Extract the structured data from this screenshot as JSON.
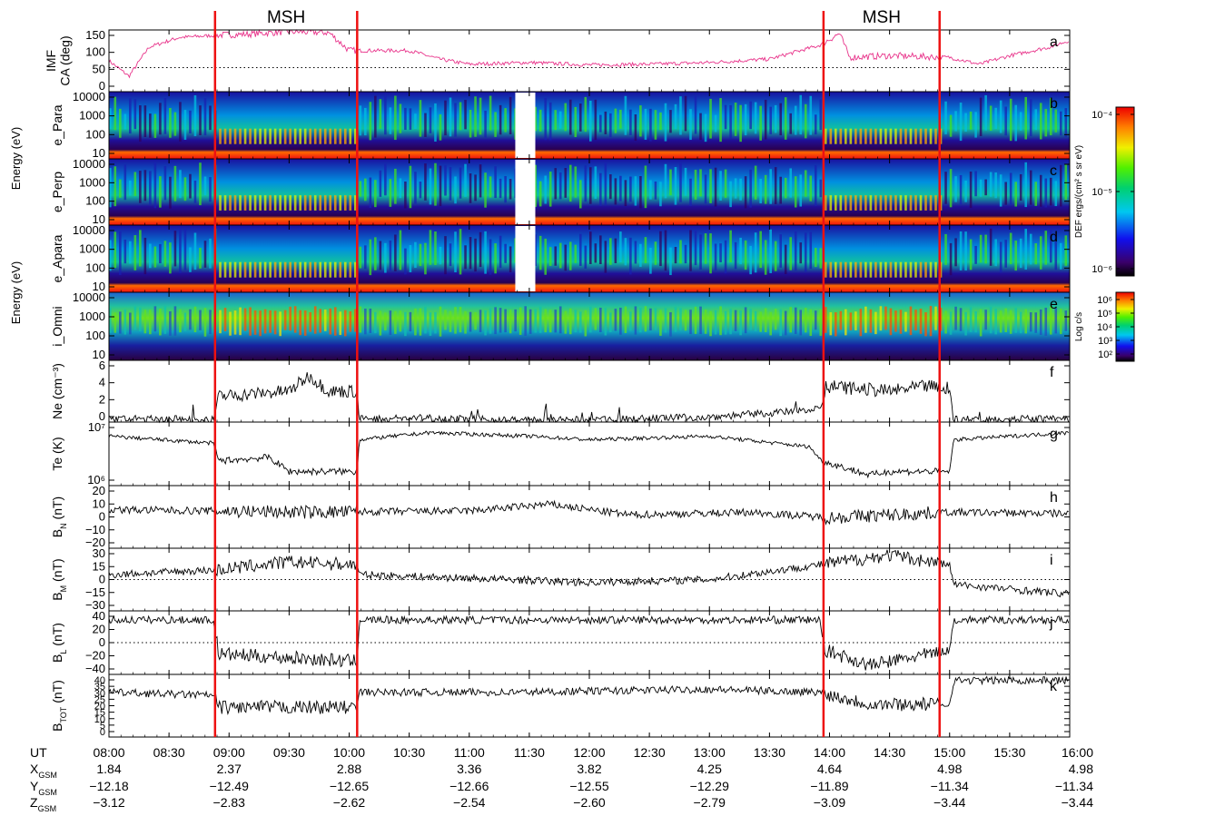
{
  "chart_data": {
    "type": "line",
    "time_range": [
      "08:00",
      "16:00"
    ],
    "ticks": {
      "labels": [
        "08:00",
        "08:30",
        "09:00",
        "09:30",
        "10:00",
        "10:30",
        "11:00",
        "11:30",
        "12:00",
        "12:30",
        "13:00",
        "13:30",
        "14:00",
        "14:30",
        "15:00",
        "15:30",
        "16:00"
      ],
      "minutes_from_start": [
        0,
        30,
        60,
        90,
        120,
        150,
        180,
        210,
        240,
        270,
        300,
        330,
        360,
        390,
        420,
        450,
        480
      ]
    },
    "msh_label": "MSH",
    "msh_color": "#ee1111",
    "msh_boundaries": [
      "08:53",
      "10:04",
      "13:57",
      "14:55"
    ],
    "msh_intervals": [
      {
        "label": "MSH",
        "start": "08:53",
        "end": "10:04"
      },
      {
        "label": "MSH",
        "start": "13:57",
        "end": "14:55"
      }
    ],
    "panels": [
      {
        "id": "a",
        "letter": "a",
        "kind": "line",
        "ylabel": [
          "IMF",
          "CA (deg)"
        ],
        "yticks": [
          "150",
          "100",
          "50",
          "0"
        ],
        "ylim": [
          0,
          180
        ],
        "ref": 70,
        "color": "#e8338a",
        "trend": [
          [
            0,
            90
          ],
          [
            10,
            45
          ],
          [
            20,
            130
          ],
          [
            35,
            158
          ],
          [
            55,
            165
          ],
          [
            70,
            168
          ],
          [
            90,
            175
          ],
          [
            110,
            172
          ],
          [
            120,
            120
          ],
          [
            150,
            120
          ],
          [
            165,
            95
          ],
          [
            180,
            80
          ],
          [
            210,
            85
          ],
          [
            240,
            78
          ],
          [
            270,
            80
          ],
          [
            300,
            85
          ],
          [
            330,
            95
          ],
          [
            355,
            135
          ],
          [
            365,
            170
          ],
          [
            370,
            100
          ],
          [
            390,
            105
          ],
          [
            420,
            100
          ],
          [
            435,
            80
          ],
          [
            450,
            105
          ],
          [
            470,
            130
          ],
          [
            480,
            150
          ]
        ]
      },
      {
        "id": "b",
        "letter": "b",
        "kind": "spectrogram",
        "ylabel": [
          "e_Para"
        ],
        "yticks": [
          "10000",
          "1000",
          "100",
          "10"
        ]
      },
      {
        "id": "c",
        "letter": "c",
        "kind": "spectrogram",
        "ylabel": [
          "e_Perp"
        ],
        "yticks": [
          "10000",
          "1000",
          "100",
          "10"
        ]
      },
      {
        "id": "d",
        "letter": "d",
        "kind": "spectrogram",
        "ylabel": [
          "e_Apara"
        ],
        "yticks": [
          "10000",
          "1000",
          "100",
          "10"
        ]
      },
      {
        "id": "e",
        "letter": "e",
        "kind": "spectrogram",
        "ylabel": [
          "i_Omni"
        ],
        "yticks": [
          "10000",
          "1000",
          "100",
          "10"
        ]
      },
      {
        "id": "f",
        "letter": "f",
        "kind": "line",
        "ylabel": [
          "Ne (cm⁻³)"
        ],
        "yticks": [
          "6",
          "4",
          "2",
          "0"
        ],
        "ylim": [
          0,
          6
        ],
        "trend": [
          [
            0,
            0.3
          ],
          [
            52,
            0.3
          ],
          [
            55,
            2.5
          ],
          [
            90,
            3.0
          ],
          [
            100,
            4.5
          ],
          [
            110,
            3.0
          ],
          [
            124,
            3.0
          ],
          [
            125,
            0.3
          ],
          [
            160,
            0.4
          ],
          [
            175,
            0.3
          ],
          [
            200,
            0.2
          ],
          [
            240,
            0.2
          ],
          [
            300,
            0.5
          ],
          [
            340,
            1.0
          ],
          [
            356,
            1.5
          ],
          [
            358,
            3.5
          ],
          [
            390,
            3.0
          ],
          [
            410,
            3.5
          ],
          [
            420,
            3.0
          ],
          [
            422,
            0.3
          ],
          [
            480,
            0.3
          ]
        ]
      },
      {
        "id": "g",
        "letter": "g",
        "kind": "line",
        "ylabel": [
          "Te (K)"
        ],
        "yticks": [
          "10⁷",
          "10⁶"
        ],
        "log": true,
        "ylim": [
          5.4,
          7.2
        ],
        "trend": [
          [
            0,
            6.8
          ],
          [
            52,
            6.6
          ],
          [
            55,
            6.1
          ],
          [
            80,
            6.2
          ],
          [
            90,
            5.8
          ],
          [
            124,
            5.8
          ],
          [
            125,
            6.7
          ],
          [
            160,
            6.9
          ],
          [
            210,
            6.8
          ],
          [
            240,
            6.7
          ],
          [
            300,
            6.8
          ],
          [
            350,
            6.5
          ],
          [
            356,
            6.1
          ],
          [
            380,
            5.7
          ],
          [
            390,
            5.8
          ],
          [
            420,
            5.8
          ],
          [
            422,
            6.7
          ],
          [
            480,
            6.9
          ]
        ]
      },
      {
        "id": "h",
        "letter": "h",
        "kind": "line",
        "ylabel": [
          "B",
          "N",
          " (nT)"
        ],
        "yticks": [
          "20",
          "10",
          "0",
          "−10",
          "−20"
        ],
        "ylim": [
          -25,
          22
        ],
        "trend": [
          [
            0,
            4
          ],
          [
            100,
            2
          ],
          [
            180,
            3
          ],
          [
            220,
            8
          ],
          [
            260,
            0
          ],
          [
            320,
            2
          ],
          [
            360,
            -2
          ],
          [
            420,
            2
          ],
          [
            480,
            1
          ]
        ]
      },
      {
        "id": "i",
        "letter": "i",
        "kind": "line",
        "ylabel": [
          "B",
          "M",
          " (nT)"
        ],
        "yticks": [
          "30",
          "15",
          "0",
          "−15",
          "−30"
        ],
        "ylim": [
          -32,
          32
        ],
        "ref": 0,
        "trend": [
          [
            0,
            5
          ],
          [
            55,
            10
          ],
          [
            90,
            18
          ],
          [
            124,
            15
          ],
          [
            125,
            5
          ],
          [
            200,
            0
          ],
          [
            240,
            -3
          ],
          [
            300,
            0
          ],
          [
            355,
            15
          ],
          [
            390,
            25
          ],
          [
            420,
            15
          ],
          [
            422,
            -5
          ],
          [
            480,
            -15
          ]
        ]
      },
      {
        "id": "j",
        "letter": "j",
        "kind": "line",
        "ylabel": [
          "B",
          "L",
          " (nT)"
        ],
        "yticks": [
          "40",
          "20",
          "0",
          "−20",
          "−40"
        ],
        "ylim": [
          -42,
          42
        ],
        "ref": 0,
        "trend": [
          [
            0,
            30
          ],
          [
            52,
            30
          ],
          [
            55,
            -15
          ],
          [
            90,
            -20
          ],
          [
            124,
            -25
          ],
          [
            125,
            30
          ],
          [
            200,
            30
          ],
          [
            300,
            30
          ],
          [
            355,
            30
          ],
          [
            358,
            -10
          ],
          [
            380,
            -30
          ],
          [
            420,
            -10
          ],
          [
            422,
            30
          ],
          [
            480,
            30
          ]
        ]
      },
      {
        "id": "k",
        "letter": "k",
        "kind": "line",
        "ylabel": [
          "B",
          "TOT",
          " (nT)"
        ],
        "yticks": [
          "40",
          "35",
          "30",
          "25",
          "20",
          "15",
          "10",
          "5",
          "0"
        ],
        "ylim": [
          0,
          42
        ],
        "trend": [
          [
            0,
            30
          ],
          [
            52,
            28
          ],
          [
            55,
            20
          ],
          [
            90,
            20
          ],
          [
            124,
            20
          ],
          [
            125,
            30
          ],
          [
            200,
            30
          ],
          [
            300,
            32
          ],
          [
            355,
            30
          ],
          [
            380,
            22
          ],
          [
            420,
            22
          ],
          [
            422,
            38
          ],
          [
            480,
            38
          ]
        ]
      }
    ],
    "energy_label": "Energy (eV)",
    "colorbars": [
      {
        "label": "DEF ergs/(cm² s sr eV)",
        "ticks": [
          "10⁻⁴",
          "10⁻⁵",
          "10⁻⁶"
        ]
      },
      {
        "label": "Log c/s",
        "ticks": [
          "10⁶",
          "10⁵",
          "10⁴",
          "10³",
          "10²"
        ]
      }
    ],
    "ephemeris": {
      "rows": [
        {
          "name": "UT",
          "label": "UT",
          "values": [
            "08:00",
            "08:30",
            "09:00",
            "09:30",
            "10:00",
            "10:30",
            "11:00",
            "11:30",
            "12:00",
            "12:30",
            "13:00",
            "13:30",
            "14:00",
            "14:30",
            "15:00",
            "15:30",
            "16:00"
          ]
        },
        {
          "name": "X",
          "label": "X",
          "sub": "GSM",
          "values": [
            "1.84",
            "2.37",
            "2.88",
            "3.36",
            "3.82",
            "4.25",
            "4.64",
            "4.98",
            "4.98"
          ]
        },
        {
          "name": "Y",
          "label": "Y",
          "sub": "GSM",
          "values": [
            "−12.18",
            "−12.49",
            "−12.65",
            "−12.66",
            "−12.55",
            "−12.29",
            "−11.89",
            "−11.34",
            "−11.34"
          ]
        },
        {
          "name": "Z",
          "label": "Z",
          "sub": "GSM",
          "values": [
            "−3.12",
            "−2.83",
            "−2.62",
            "−2.54",
            "−2.60",
            "−2.79",
            "−3.09",
            "−3.44",
            "−3.44"
          ]
        }
      ],
      "value_minutes": [
        0,
        60,
        120,
        180,
        240,
        300,
        360,
        420,
        480
      ]
    }
  }
}
